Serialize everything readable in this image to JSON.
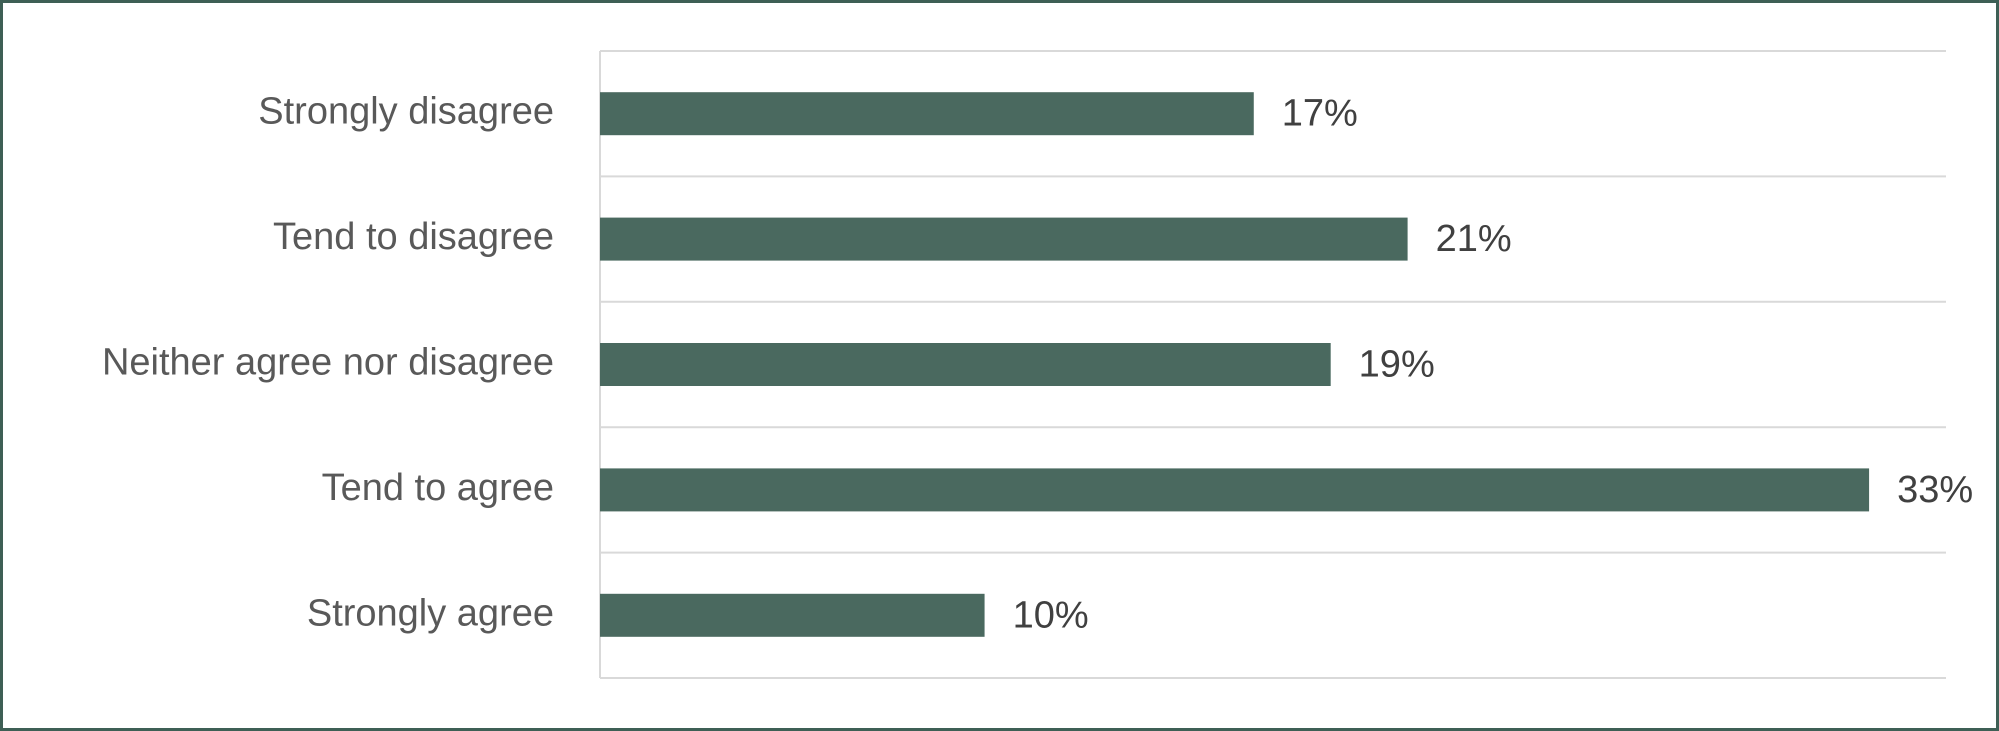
{
  "chart_data": {
    "type": "bar",
    "orientation": "horizontal",
    "categories": [
      "Strongly disagree",
      "Tend to disagree",
      "Neither agree nor disagree",
      "Tend to agree",
      "Strongly agree"
    ],
    "values": [
      17,
      21,
      19,
      33,
      10
    ],
    "value_labels": [
      "17%",
      "21%",
      "19%",
      "33%",
      "10%"
    ],
    "color": "#4a695f",
    "xlim": [
      0,
      35
    ]
  }
}
